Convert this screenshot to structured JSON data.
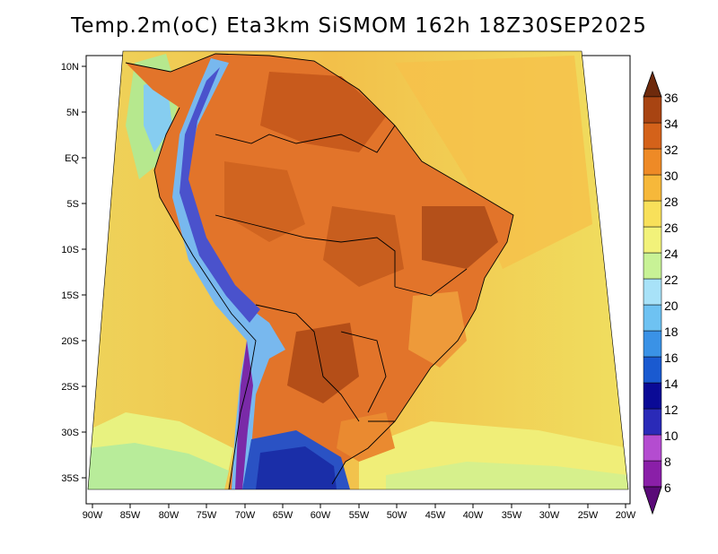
{
  "title": "Temp.2m(oC) Eta3km SiSMOM 162h 18Z30SEP2025",
  "x_axis": {
    "labels": [
      "90W",
      "85W",
      "80W",
      "75W",
      "70W",
      "65W",
      "60W",
      "55W",
      "50W",
      "45W",
      "40W",
      "35W",
      "30W",
      "25W",
      "20W"
    ]
  },
  "y_axis": {
    "labels": [
      "10N",
      "5N",
      "EQ",
      "5S",
      "10S",
      "15S",
      "20S",
      "25S",
      "30S",
      "35S"
    ]
  },
  "colorbar": {
    "labels": [
      "6",
      "8",
      "10",
      "12",
      "14",
      "16",
      "18",
      "20",
      "22",
      "24",
      "26",
      "28",
      "30",
      "32",
      "34",
      "36"
    ],
    "colors": [
      "#5a0a78",
      "#8a1fa8",
      "#b44cd0",
      "#2a2ab8",
      "#0a0a96",
      "#1a5ad0",
      "#3a92e6",
      "#6ec2f2",
      "#a8e2f8",
      "#c8f296",
      "#f2f27a",
      "#f8e05a",
      "#f6b83a",
      "#ee8a26",
      "#d4621a",
      "#a84412",
      "#6e2a0c"
    ]
  },
  "palette": {
    "ocean_far": "#f0e05e",
    "ocean_mid": "#f4c048",
    "land_base": "#e2742a",
    "land_hot": "#bd5418",
    "andes_cold": "#5a3cc8",
    "andes_mid": "#74b6ee",
    "south_cold": "#2a4ec8"
  }
}
